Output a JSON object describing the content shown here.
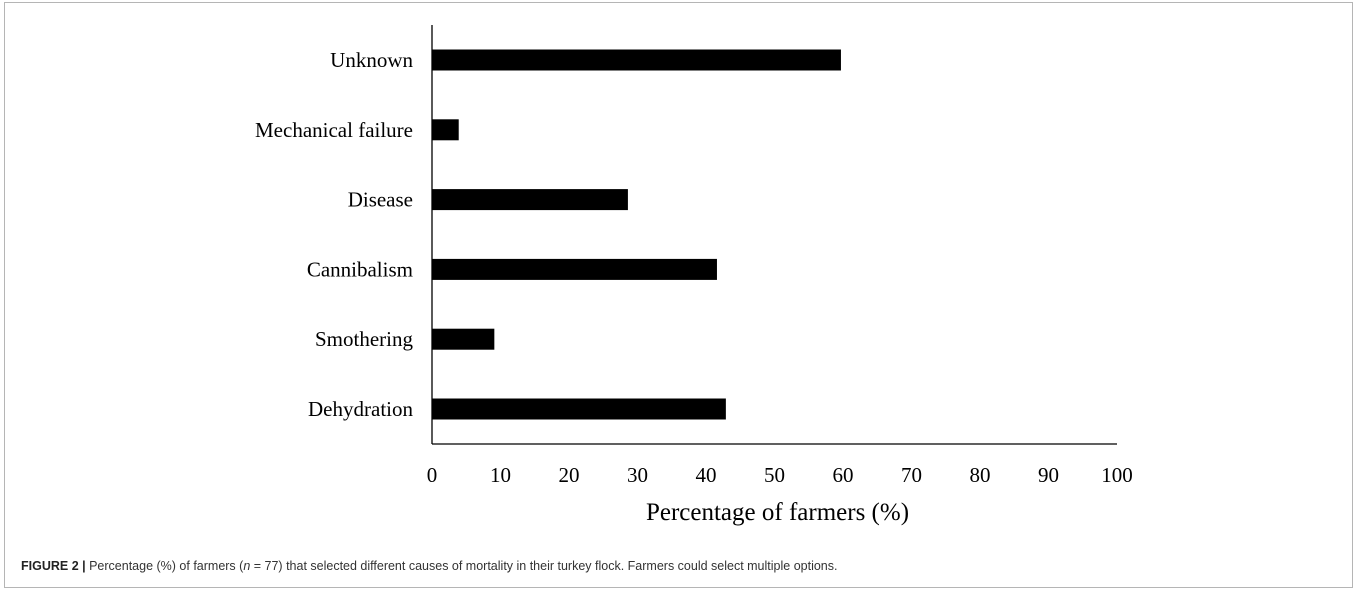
{
  "caption": {
    "label": "FIGURE 2 |",
    "text_before_n": " Percentage (%) of farmers (",
    "n_symbol": "n",
    "text_after_n": " = 77) that selected different causes of mortality in their turkey flock. Farmers could select multiple options."
  },
  "chart_data": {
    "type": "bar",
    "orientation": "horizontal",
    "categories": [
      "Unknown",
      "Mechanical failure",
      "Disease",
      "Cannibalism",
      "Smothering",
      "Dehydration"
    ],
    "values": [
      59.7,
      3.9,
      28.6,
      41.6,
      9.1,
      42.9
    ],
    "xlabel": "Percentage of farmers (%)",
    "ylabel": "",
    "xlim": [
      0,
      100
    ],
    "xticks": [
      0,
      10,
      20,
      30,
      40,
      50,
      60,
      70,
      80,
      90,
      100
    ],
    "bar_color": "#000000",
    "grid": false,
    "legend": "none"
  }
}
